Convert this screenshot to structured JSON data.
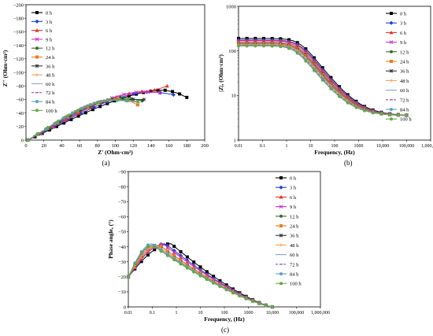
{
  "legend_labels": [
    "0 h",
    "3 h",
    "6 h",
    "9 h",
    "12 h",
    "24 h",
    "36 h",
    "48 h",
    "60 h",
    "72 h",
    "84 h",
    "100 h"
  ],
  "series_colors": [
    "#000000",
    "#1f3fd8",
    "#e8302a",
    "#cc33cc",
    "#3b6a2d",
    "#e87d1e",
    "#333333",
    "#f2a35a",
    "#8aa1cf",
    "#b24fa8",
    "#5aa0c8",
    "#62a84a"
  ],
  "chart_data": [
    {
      "type": "scatter",
      "panel_label": "(a)",
      "xlabel": "Z' (Ohm·cm²)",
      "ylabel": "Z'' (Ohm·cm²)",
      "xlim": [
        0,
        200
      ],
      "ylim": [
        0,
        -200
      ],
      "xticks": [
        "0",
        "20",
        "40",
        "60",
        "80",
        "100",
        "120",
        "140",
        "160",
        "180",
        "200"
      ],
      "yticks": [
        "0",
        "−20",
        "−40",
        "−60",
        "−80",
        "−100",
        "−120",
        "−140",
        "−160",
        "−180",
        "−200"
      ],
      "legend": "top-left",
      "series": [
        {
          "name": "0 h",
          "end": [
            180,
            -63
          ],
          "peak": [
            150,
            -74
          ]
        },
        {
          "name": "3 h",
          "end": [
            165,
            -67
          ],
          "peak": [
            135,
            -71
          ]
        },
        {
          "name": "6 h",
          "end": [
            158,
            -80
          ],
          "peak": [
            130,
            -72
          ]
        },
        {
          "name": "9 h",
          "end": [
            150,
            -70
          ],
          "peak": [
            125,
            -71
          ]
        },
        {
          "name": "12 h",
          "end": [
            130,
            -58
          ],
          "peak": [
            105,
            -62
          ]
        },
        {
          "name": "24 h",
          "end": [
            125,
            -52
          ],
          "peak": [
            100,
            -61
          ]
        },
        {
          "name": "36 h",
          "end": [
            132,
            -60
          ],
          "peak": [
            98,
            -60
          ]
        },
        {
          "name": "48 h",
          "end": [
            115,
            -58
          ],
          "peak": [
            95,
            -60
          ]
        },
        {
          "name": "60 h",
          "end": [
            128,
            -55
          ],
          "peak": [
            95,
            -59
          ]
        },
        {
          "name": "72 h",
          "end": [
            120,
            -58
          ],
          "peak": [
            92,
            -60
          ]
        },
        {
          "name": "84 h",
          "end": [
            112,
            -58
          ],
          "peak": [
            92,
            -59
          ]
        },
        {
          "name": "100 h",
          "end": [
            125,
            -57
          ],
          "peak": [
            95,
            -60
          ]
        }
      ]
    },
    {
      "type": "line",
      "panel_label": "(b)",
      "xlabel": "Frequency, (Hz)",
      "ylabel": "|Z|, (Ohm·cm²)",
      "xscale": "log",
      "yscale": "log",
      "xlim": [
        0.01,
        1000000
      ],
      "ylim": [
        1,
        1000
      ],
      "xticks": [
        "0.01",
        "0.1",
        "1",
        "10",
        "100",
        "1000",
        "10,000",
        "100,000",
        "1,000,000"
      ],
      "yticks": [
        "1",
        "10",
        "100",
        "1000"
      ],
      "legend": "right",
      "series_low_freq_value": [
        190,
        175,
        170,
        160,
        150,
        145,
        140,
        140,
        135,
        135,
        130,
        130
      ],
      "high_freq_value": 3.5
    },
    {
      "type": "line",
      "panel_label": "(c)",
      "xlabel": "Frequency, (Hz)",
      "ylabel": "Phase angle, (°)",
      "xscale": "log",
      "xlim": [
        0.01,
        1000000
      ],
      "ylim": [
        0,
        -90
      ],
      "xticks": [
        "0.01",
        "0.1",
        "1",
        "10",
        "100",
        "1000",
        "10,000",
        "100,000",
        "1,000,000"
      ],
      "yticks": [
        "0",
        "−10",
        "−20",
        "−30",
        "−40",
        "−50",
        "−60",
        "−70",
        "−80",
        "−90"
      ],
      "legend": "right",
      "series_peak": [
        {
          "name": "0 h",
          "freq": 0.6,
          "phase": -42
        },
        {
          "name": "3 h",
          "freq": 0.35,
          "phase": -42
        },
        {
          "name": "6 h",
          "freq": 0.3,
          "phase": -41.5
        },
        {
          "name": "9 h",
          "freq": 0.3,
          "phase": -41.5
        },
        {
          "name": "12 h",
          "freq": 0.2,
          "phase": -41
        },
        {
          "name": "24 h",
          "freq": 0.2,
          "phase": -41
        },
        {
          "name": "36 h",
          "freq": 0.15,
          "phase": -41
        },
        {
          "name": "48 h",
          "freq": 0.15,
          "phase": -41
        },
        {
          "name": "60 h",
          "freq": 0.12,
          "phase": -41
        },
        {
          "name": "72 h",
          "freq": 0.12,
          "phase": -41
        },
        {
          "name": "84 h",
          "freq": 0.1,
          "phase": -42
        },
        {
          "name": "100 h",
          "freq": 0.1,
          "phase": -41
        }
      ]
    }
  ]
}
